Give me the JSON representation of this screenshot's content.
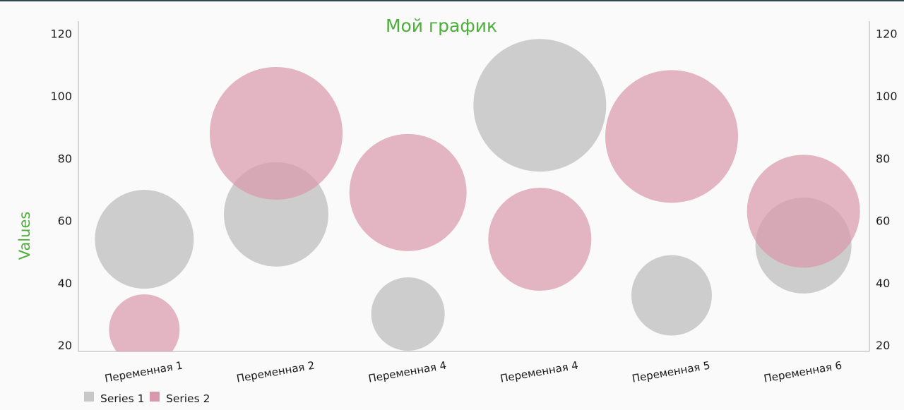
{
  "chart_data": {
    "type": "bubble",
    "title": "Мой график",
    "ylabel": "Values",
    "xlabel": "",
    "categories": [
      "Переменная 1",
      "Переменная 2",
      "Переменная 4",
      "Переменная 4",
      "Переменная 5",
      "Переменная 6"
    ],
    "ylim": [
      18,
      124
    ],
    "yticks": [
      20,
      40,
      60,
      80,
      100,
      120
    ],
    "grid": false,
    "legend_position": "bottom-left",
    "series": [
      {
        "name": "Series 1",
        "color": "#c8c8c8",
        "values": [
          54,
          62,
          30,
          97,
          36,
          52
        ],
        "sizes": [
          70,
          74,
          52,
          94,
          57,
          68
        ]
      },
      {
        "name": "Series 2",
        "color": "#d998ac",
        "values": [
          25,
          88,
          69,
          54,
          87,
          63
        ],
        "sizes": [
          50,
          94,
          83,
          73,
          94,
          80
        ]
      }
    ]
  }
}
